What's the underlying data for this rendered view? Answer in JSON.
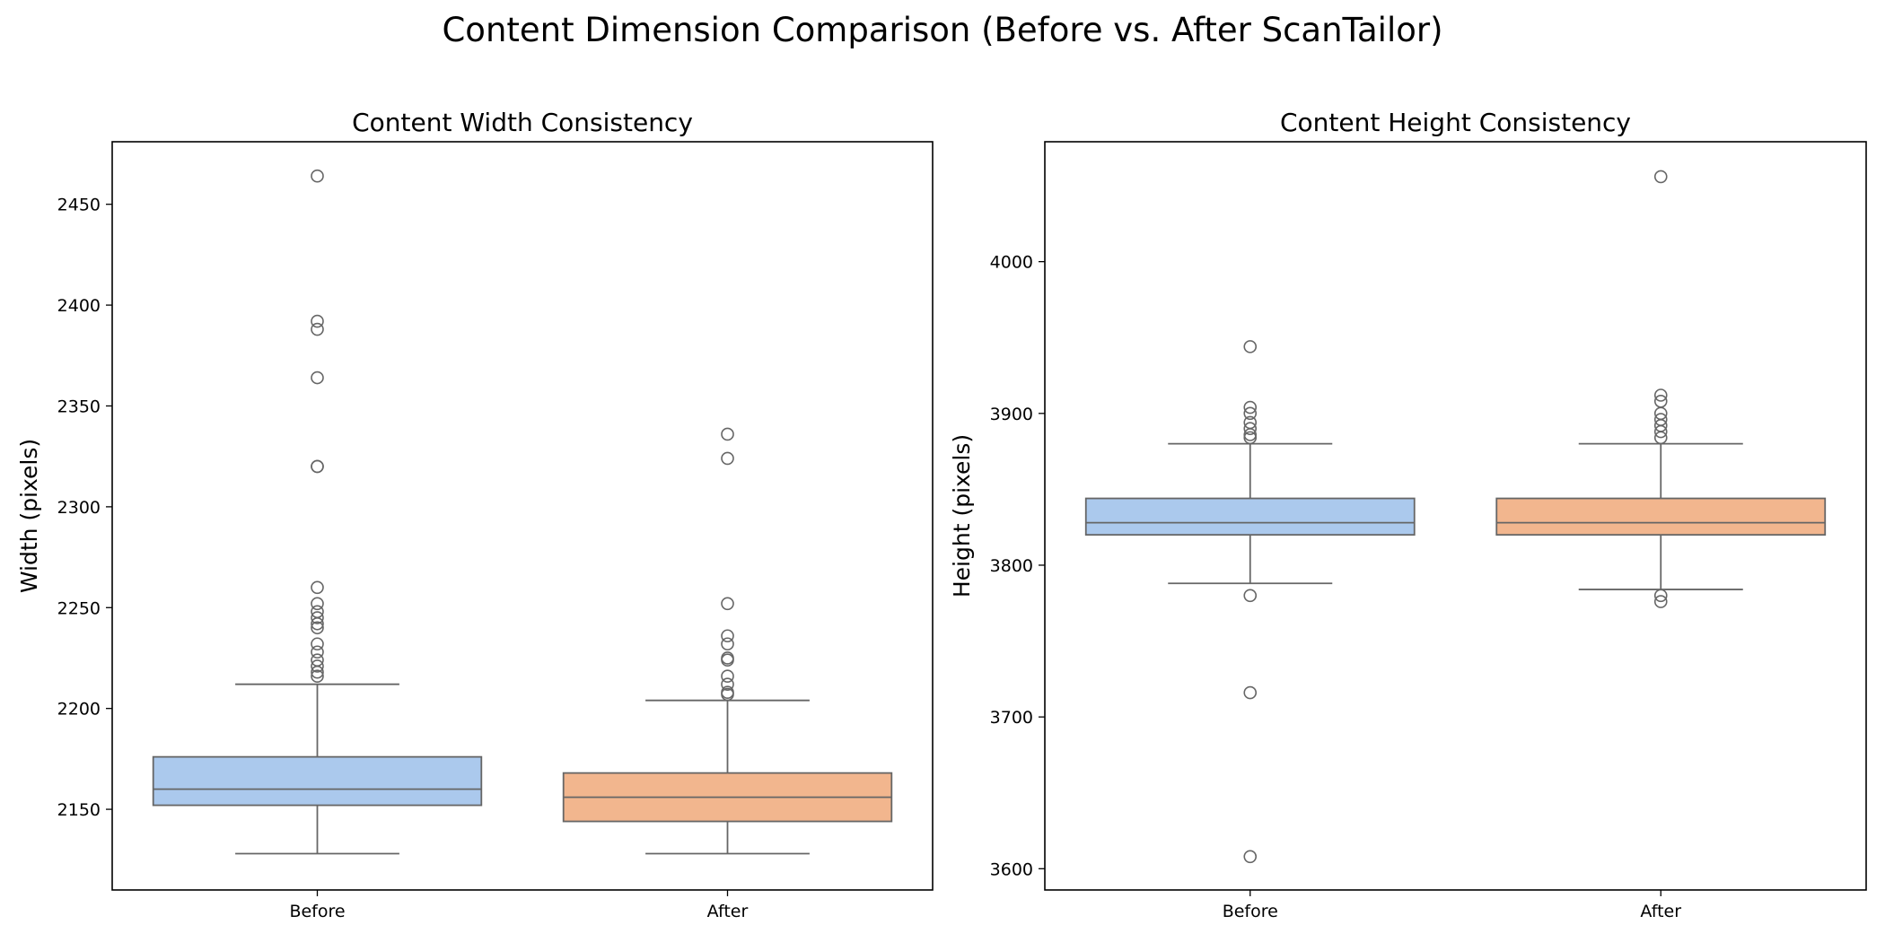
{
  "figure": {
    "title": "Content Dimension Comparison (Before vs. After ScanTailor)"
  },
  "colors": {
    "before": "#abc9ed",
    "after": "#f2b68e",
    "line": "#666666",
    "axis": "#000000"
  },
  "chart_data": [
    {
      "type": "box",
      "title": "Content Width Consistency",
      "xlabel": "",
      "ylabel": "Width (pixels)",
      "categories": [
        "Before",
        "After"
      ],
      "ylim": [
        2110,
        2481
      ],
      "yticks": [
        2150,
        2200,
        2250,
        2300,
        2350,
        2400,
        2450
      ],
      "boxes": [
        {
          "name": "Before",
          "whisker_low": 2128,
          "q1": 2152,
          "median": 2160,
          "q3": 2176,
          "whisker_high": 2212,
          "outliers": [
            2216,
            2218,
            2221,
            2224,
            2228,
            2232,
            2240,
            2242,
            2245,
            2248,
            2252,
            2260,
            2320,
            2320,
            2364,
            2388,
            2392,
            2464
          ]
        },
        {
          "name": "After",
          "whisker_low": 2128,
          "q1": 2144,
          "median": 2156,
          "q3": 2168,
          "whisker_high": 2204,
          "outliers": [
            2207,
            2208,
            2212,
            2216,
            2224,
            2225,
            2232,
            2236,
            2252,
            2324,
            2336
          ]
        }
      ]
    },
    {
      "type": "box",
      "title": "Content Height Consistency",
      "xlabel": "",
      "ylabel": "Height (pixels)",
      "categories": [
        "Before",
        "After"
      ],
      "ylim": [
        3586,
        4079
      ],
      "yticks": [
        3600,
        3700,
        3800,
        3900,
        4000
      ],
      "boxes": [
        {
          "name": "Before",
          "whisker_low": 3788,
          "q1": 3820,
          "median": 3828,
          "q3": 3844,
          "whisker_high": 3880,
          "outliers": [
            3608,
            3716,
            3780,
            3884,
            3886,
            3890,
            3894,
            3900,
            3904,
            3944
          ]
        },
        {
          "name": "After",
          "whisker_low": 3784,
          "q1": 3820,
          "median": 3828,
          "q3": 3844,
          "whisker_high": 3880,
          "outliers": [
            3776,
            3780,
            3884,
            3888,
            3892,
            3896,
            3900,
            3908,
            3912,
            4056
          ]
        }
      ]
    }
  ]
}
